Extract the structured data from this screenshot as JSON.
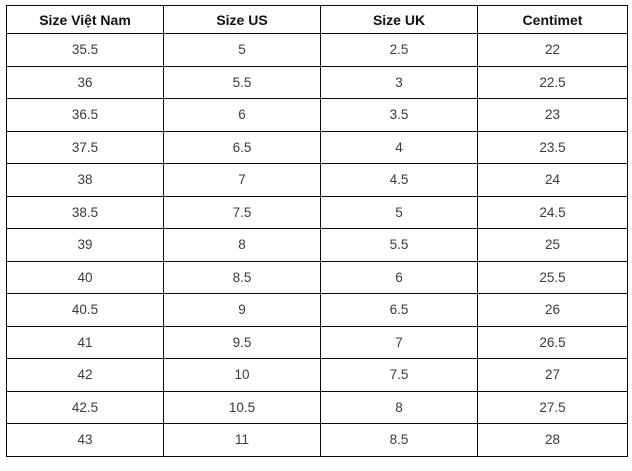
{
  "table": {
    "columns": [
      "Size Việt Nam",
      "Size US",
      "Size UK",
      "Centimet"
    ],
    "rows": [
      [
        "35.5",
        "5",
        "2.5",
        "22"
      ],
      [
        "36",
        "5.5",
        "3",
        "22.5"
      ],
      [
        "36.5",
        "6",
        "3.5",
        "23"
      ],
      [
        "37.5",
        "6.5",
        "4",
        "23.5"
      ],
      [
        "38",
        "7",
        "4.5",
        "24"
      ],
      [
        "38.5",
        "7.5",
        "5",
        "24.5"
      ],
      [
        "39",
        "8",
        "5.5",
        "25"
      ],
      [
        "40",
        "8.5",
        "6",
        "25.5"
      ],
      [
        "40.5",
        "9",
        "6.5",
        "26"
      ],
      [
        "41",
        "9.5",
        "7",
        "26.5"
      ],
      [
        "42",
        "10",
        "7.5",
        "27"
      ],
      [
        "42.5",
        "10.5",
        "8",
        "27.5"
      ],
      [
        "43",
        "11",
        "8.5",
        "28"
      ]
    ]
  },
  "colors": {
    "background": "#ffffff",
    "border": "#0a0a0a",
    "header_text": "#111111",
    "cell_text": "#3b3b3b"
  }
}
